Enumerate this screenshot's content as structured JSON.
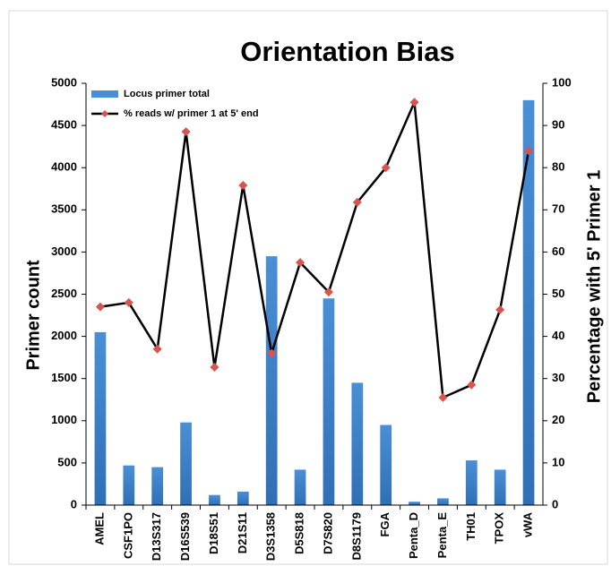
{
  "chart_data": {
    "type": "bar_line",
    "title": "Orientation Bias",
    "y_label": "Primer count",
    "y2_label": "Percentage with 5' Primer 1",
    "categories": [
      "AMEL",
      "CSF1PO",
      "D13S317",
      "D16S539",
      "D18S51",
      "D21S11",
      "D3S1358",
      "D5S818",
      "D7S820",
      "D8S1179",
      "FGA",
      "Penta_D",
      "Penta_E",
      "TH01",
      "TPOX",
      "vWA"
    ],
    "series": [
      {
        "name": "Locus primer total",
        "type": "bar",
        "color": "#4a8fd6",
        "axis": "y",
        "values": [
          2050,
          470,
          450,
          980,
          120,
          160,
          2950,
          420,
          2450,
          1450,
          950,
          40,
          80,
          530,
          420,
          4800
        ]
      },
      {
        "name": "% reads w/ primer 1 at 5' end",
        "type": "line",
        "color": "#000000",
        "marker_color": "#d9534f",
        "axis": "y2",
        "values": [
          47,
          48,
          37,
          88.5,
          32.7,
          75.8,
          36,
          57.5,
          50.5,
          71.8,
          80,
          95.5,
          25.5,
          28.5,
          46.3,
          84
        ]
      }
    ],
    "ylim": [
      0,
      5000
    ],
    "yticks": [
      0,
      500,
      1000,
      1500,
      2000,
      2500,
      3000,
      3500,
      4000,
      4500,
      5000
    ],
    "y2lim": [
      0,
      100
    ],
    "y2ticks": [
      0,
      10,
      20,
      30,
      40,
      50,
      60,
      70,
      80,
      90,
      100
    ],
    "legend": "upper left"
  }
}
